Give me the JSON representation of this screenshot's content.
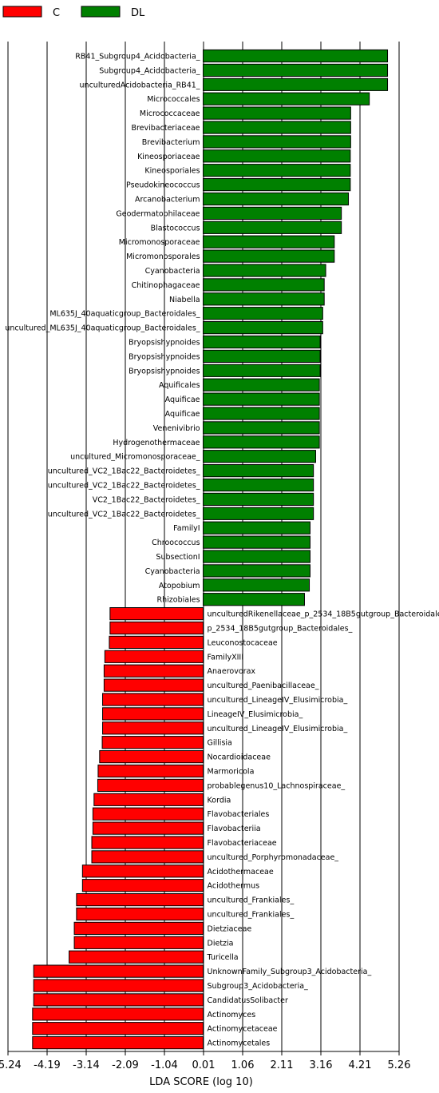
{
  "chart_data": {
    "type": "bar",
    "orientation": "horizontal",
    "title": "",
    "xlabel": "LDA SCORE (log 10)",
    "ylabel": "",
    "xlim": [
      -5.24,
      5.26
    ],
    "xticks": [
      "-5.24",
      "-4.19",
      "-3.14",
      "-2.09",
      "-1.04",
      "0.01",
      "1.06",
      "2.11",
      "3.16",
      "4.21",
      "5.26"
    ],
    "xtick_values": [
      -5.24,
      -4.19,
      -3.14,
      -2.09,
      -1.04,
      0.01,
      1.06,
      2.11,
      3.16,
      4.21,
      5.26
    ],
    "grid": "vertical lines at ticks",
    "legend_position": "top-left",
    "groups": [
      {
        "name": "C",
        "color": "#ff0000"
      },
      {
        "name": "DL",
        "color": "#008000"
      }
    ],
    "bars": [
      {
        "label": "RB41_Subgroup4_Acidobacteria_",
        "value": 4.95,
        "group": "DL"
      },
      {
        "label": "Subgroup4_Acidobacteria_",
        "value": 4.95,
        "group": "DL"
      },
      {
        "label": "unculturedAcidobacteria_RB41_",
        "value": 4.95,
        "group": "DL"
      },
      {
        "label": "Micrococcales",
        "value": 4.46,
        "group": "DL"
      },
      {
        "label": "Micrococcaceae",
        "value": 3.96,
        "group": "DL"
      },
      {
        "label": "Brevibacteriaceae",
        "value": 3.96,
        "group": "DL"
      },
      {
        "label": "Brevibacterium",
        "value": 3.96,
        "group": "DL"
      },
      {
        "label": "Kineosporiaceae",
        "value": 3.95,
        "group": "DL"
      },
      {
        "label": "Kineosporiales",
        "value": 3.95,
        "group": "DL"
      },
      {
        "label": "Pseudokineococcus",
        "value": 3.95,
        "group": "DL"
      },
      {
        "label": "Arcanobacterium",
        "value": 3.9,
        "group": "DL"
      },
      {
        "label": "Geodermatophilaceae",
        "value": 3.71,
        "group": "DL"
      },
      {
        "label": "Blastococcus",
        "value": 3.71,
        "group": "DL"
      },
      {
        "label": "Micromonosporaceae",
        "value": 3.52,
        "group": "DL"
      },
      {
        "label": "Micromonosporales",
        "value": 3.52,
        "group": "DL"
      },
      {
        "label": "Cyanobacteria",
        "value": 3.29,
        "group": "DL"
      },
      {
        "label": "Chitinophagaceae",
        "value": 3.25,
        "group": "DL"
      },
      {
        "label": "Niabella",
        "value": 3.25,
        "group": "DL"
      },
      {
        "label": "ML635J_40aquaticgroup_Bacteroidales_",
        "value": 3.21,
        "group": "DL"
      },
      {
        "label": "uncultured_ML635J_40aquaticgroup_Bacteroidales_",
        "value": 3.21,
        "group": "DL"
      },
      {
        "label": "Bryopsishypnoides",
        "value": 3.14,
        "group": "DL"
      },
      {
        "label": "Bryopsishypnoides",
        "value": 3.14,
        "group": "DL"
      },
      {
        "label": "Bryopsishypnoides",
        "value": 3.14,
        "group": "DL"
      },
      {
        "label": "Aquificales",
        "value": 3.12,
        "group": "DL"
      },
      {
        "label": "Aquificae",
        "value": 3.12,
        "group": "DL"
      },
      {
        "label": "Aquificae",
        "value": 3.12,
        "group": "DL"
      },
      {
        "label": "Venenivibrio",
        "value": 3.12,
        "group": "DL"
      },
      {
        "label": "Hydrogenothermaceae",
        "value": 3.12,
        "group": "DL"
      },
      {
        "label": "uncultured_Micromonosporaceae_",
        "value": 3.02,
        "group": "DL"
      },
      {
        "label": "uncultured_VC2_1Bac22_Bacteroidetes_",
        "value": 2.96,
        "group": "DL"
      },
      {
        "label": "uncultured_VC2_1Bac22_Bacteroidetes_",
        "value": 2.96,
        "group": "DL"
      },
      {
        "label": "VC2_1Bac22_Bacteroidetes_",
        "value": 2.96,
        "group": "DL"
      },
      {
        "label": "uncultured_VC2_1Bac22_Bacteroidetes_",
        "value": 2.96,
        "group": "DL"
      },
      {
        "label": "FamilyI",
        "value": 2.87,
        "group": "DL"
      },
      {
        "label": "Chroococcus",
        "value": 2.87,
        "group": "DL"
      },
      {
        "label": "SubsectionI",
        "value": 2.87,
        "group": "DL"
      },
      {
        "label": "Cyanobacteria",
        "value": 2.87,
        "group": "DL"
      },
      {
        "label": "Atopobium",
        "value": 2.85,
        "group": "DL"
      },
      {
        "label": "Rhizobiales",
        "value": 2.72,
        "group": "DL"
      },
      {
        "label": "unculturedRikenellaceae_p_2534_18B5gutgroup_Bacteroidales_",
        "value": -2.5,
        "group": "C"
      },
      {
        "label": "p_2534_18B5gutgroup_Bacteroidales_",
        "value": -2.5,
        "group": "C"
      },
      {
        "label": "Leuconostocaceae",
        "value": -2.52,
        "group": "C"
      },
      {
        "label": "FamilyXIII",
        "value": -2.64,
        "group": "C"
      },
      {
        "label": "Anaerovorax",
        "value": -2.66,
        "group": "C"
      },
      {
        "label": "uncultured_Paenibacillaceae_",
        "value": -2.66,
        "group": "C"
      },
      {
        "label": "uncultured_LineageIV_Elusimicrobia_",
        "value": -2.7,
        "group": "C"
      },
      {
        "label": "LineageIV_Elusimicrobia_",
        "value": -2.7,
        "group": "C"
      },
      {
        "label": "uncultured_LineageIV_Elusimicrobia_",
        "value": -2.7,
        "group": "C"
      },
      {
        "label": "Gillisia",
        "value": -2.71,
        "group": "C"
      },
      {
        "label": "Nocardioidaceae",
        "value": -2.78,
        "group": "C"
      },
      {
        "label": "Marmoricola",
        "value": -2.82,
        "group": "C"
      },
      {
        "label": "probablegenus10_Lachnospiraceae_",
        "value": -2.83,
        "group": "C"
      },
      {
        "label": "Kordia",
        "value": -2.93,
        "group": "C"
      },
      {
        "label": "Flavobacteriales",
        "value": -2.96,
        "group": "C"
      },
      {
        "label": "Flavobacteriia",
        "value": -2.96,
        "group": "C"
      },
      {
        "label": "Flavobacteriaceae",
        "value": -2.99,
        "group": "C"
      },
      {
        "label": "uncultured_Porphyromonadaceae_",
        "value": -2.99,
        "group": "C"
      },
      {
        "label": "Acidothermaceae",
        "value": -3.24,
        "group": "C"
      },
      {
        "label": "Acidothermus",
        "value": -3.24,
        "group": "C"
      },
      {
        "label": "uncultured_Frankiales_",
        "value": -3.4,
        "group": "C"
      },
      {
        "label": "uncultured_Frankiales_",
        "value": -3.4,
        "group": "C"
      },
      {
        "label": "Dietziaceae",
        "value": -3.46,
        "group": "C"
      },
      {
        "label": "Dietzia",
        "value": -3.46,
        "group": "C"
      },
      {
        "label": "Turicella",
        "value": -3.6,
        "group": "C"
      },
      {
        "label": "UnknownFamily_Subgroup3_Acidobacteria_",
        "value": -4.55,
        "group": "C"
      },
      {
        "label": "Subgroup3_Acidobacteria_",
        "value": -4.55,
        "group": "C"
      },
      {
        "label": "CandidatusSolibacter",
        "value": -4.55,
        "group": "C"
      },
      {
        "label": "Actinomyces",
        "value": -4.58,
        "group": "C"
      },
      {
        "label": "Actinomycetaceae",
        "value": -4.58,
        "group": "C"
      },
      {
        "label": "Actinomycetales",
        "value": -4.58,
        "group": "C"
      }
    ]
  }
}
